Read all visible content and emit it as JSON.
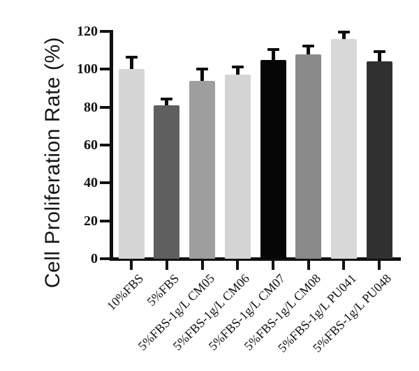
{
  "figure": {
    "background": "#ffffff",
    "axis_color": "#111111",
    "error_bar_color": "#0d0d0d"
  },
  "chart_data": {
    "type": "bar",
    "title": "",
    "xlabel": "",
    "ylabel": "Cell Proliferation Rate (%)",
    "ylim": [
      0,
      120
    ],
    "yticks": [
      0,
      20,
      40,
      60,
      80,
      100,
      120
    ],
    "grid": false,
    "legend": null,
    "categories": [
      "10%FBS",
      "5%FBS",
      "5%FBS-1g/L CM05",
      "5%FBS-1g/L CM06",
      "5%FBS-1g/L CM07",
      "5%FBS-1g/L CM08",
      "5%FBS-1g/L PU041",
      "5%FBS-1g/L PU048"
    ],
    "series": [
      {
        "name": "Cell Proliferation Rate (%)",
        "values": [
          100,
          81,
          94,
          97,
          105,
          108,
          116,
          104
        ],
        "errors": [
          7,
          4,
          7,
          5,
          6,
          5,
          4.5,
          6
        ]
      }
    ],
    "bar_colors": [
      "#d6d6d6",
      "#5f5f5f",
      "#9e9e9e",
      "#d4d4d4",
      "#060606",
      "#8a8a8a",
      "#d8d8d8",
      "#303030"
    ]
  }
}
